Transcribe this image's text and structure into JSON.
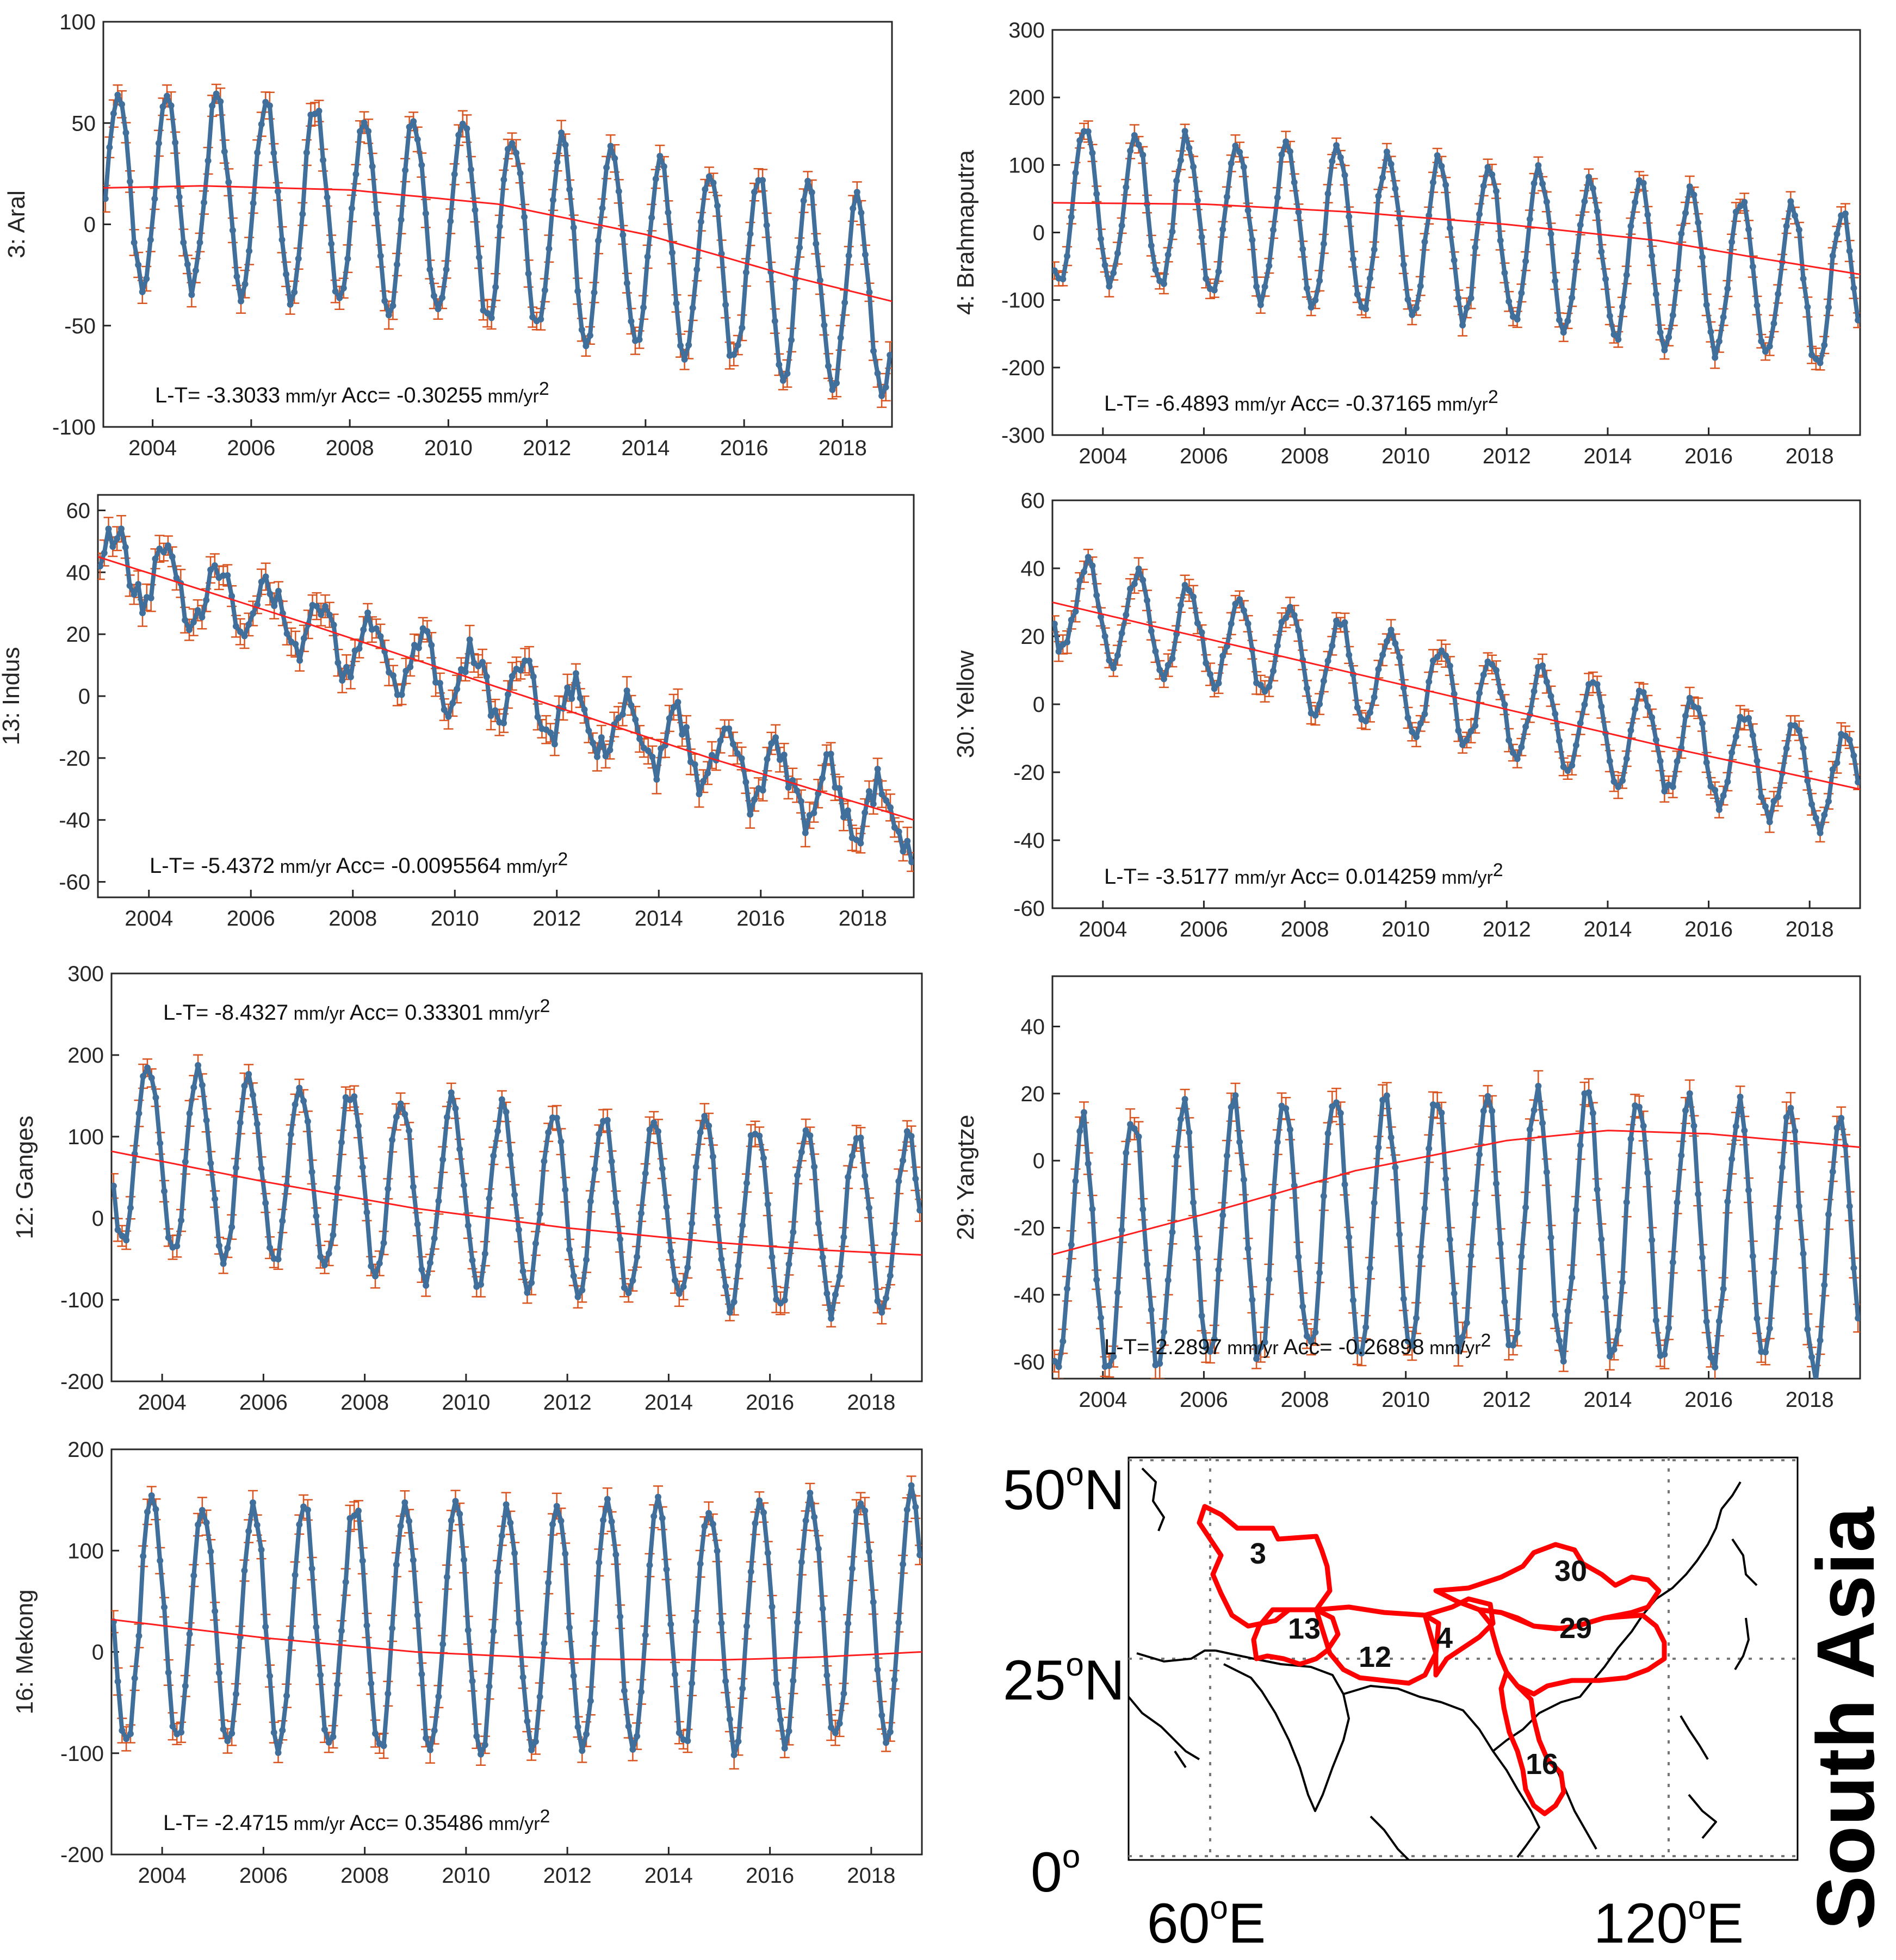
{
  "colors": {
    "series": "#3f6f9a",
    "error": "#d9541e",
    "trend": "#ff1f1f",
    "axis": "#262626",
    "basin": "#ff0000"
  },
  "x_ticks": [
    2004,
    2006,
    2008,
    2010,
    2012,
    2014,
    2016,
    2018
  ],
  "chart_data": [
    {
      "type": "line",
      "ylabel": "3: Aral",
      "xlim": [
        2003,
        2019
      ],
      "ylim": [
        -100,
        100
      ],
      "yticks": [
        -100,
        -50,
        0,
        50,
        100
      ],
      "annotation": {
        "lt_label": "L-T=",
        "lt_value": "-3.3033",
        "lt_unit": "mm/yr",
        "acc_label": "Acc=",
        "acc_value": "-0.30255",
        "acc_unit": "mm/yr",
        "acc_exp": "2"
      },
      "seasonal": {
        "amplitude": 47,
        "offset": 18,
        "slope": -1.2,
        "accel": -0.3,
        "peak": 0.3,
        "noise": 5,
        "err": 6,
        "seed": 3
      },
      "trend": [
        [
          2003,
          18
        ],
        [
          2005,
          19
        ],
        [
          2008,
          17
        ],
        [
          2011,
          10
        ],
        [
          2014,
          -5
        ],
        [
          2017,
          -26
        ],
        [
          2019,
          -38
        ]
      ]
    },
    {
      "type": "line",
      "ylabel": "4: Brahmaputra",
      "xlim": [
        2003,
        2019
      ],
      "ylim": [
        -300,
        300
      ],
      "yticks": [
        -300,
        -200,
        -100,
        0,
        100,
        200,
        300
      ],
      "annotation": {
        "lt_label": "L-T=",
        "lt_value": "-6.4893",
        "lt_unit": "mm/yr",
        "acc_label": "Acc=",
        "acc_value": "-0.37165",
        "acc_unit": "mm/yr",
        "acc_exp": "2"
      },
      "seasonal": {
        "amplitude": 115,
        "offset": 44,
        "slope": -5.5,
        "accel": -0.37,
        "peak": 0.65,
        "noise": 12,
        "err": 14,
        "seed": 4
      },
      "trend": [
        [
          2003,
          44
        ],
        [
          2006,
          42
        ],
        [
          2009,
          30
        ],
        [
          2012,
          12
        ],
        [
          2015,
          -12
        ],
        [
          2017,
          -38
        ],
        [
          2019,
          -62
        ]
      ]
    },
    {
      "type": "line",
      "ylabel": "13: Indus",
      "xlim": [
        2003,
        2019
      ],
      "ylim": [
        -65,
        65
      ],
      "yticks": [
        -60,
        -40,
        -20,
        0,
        20,
        40,
        60
      ],
      "annotation": {
        "lt_label": "L-T=",
        "lt_value": "-5.4372",
        "lt_unit": "mm/yr",
        "acc_label": "Acc=",
        "acc_value": "-0.0095564",
        "acc_unit": "mm/yr",
        "acc_exp": "2"
      },
      "seasonal": {
        "amplitude": 10,
        "offset": 45,
        "slope": -5.4,
        "accel": 0,
        "peak": 0.35,
        "noise": 5,
        "err": 4,
        "seed": 13
      },
      "trend": [
        [
          2003,
          45
        ],
        [
          2007,
          24
        ],
        [
          2011,
          2
        ],
        [
          2015,
          -20
        ],
        [
          2019,
          -40
        ]
      ]
    },
    {
      "type": "line",
      "ylabel": "30: Yellow",
      "xlim": [
        2003,
        2019
      ],
      "ylim": [
        -60,
        60
      ],
      "yticks": [
        -60,
        -40,
        -20,
        0,
        20,
        40,
        60
      ],
      "annotation": {
        "lt_label": "L-T=",
        "lt_value": "-3.5177",
        "lt_unit": "mm/yr",
        "acc_label": "Acc=",
        "acc_value": "0.014259",
        "acc_unit": "mm/yr",
        "acc_exp": "2"
      },
      "seasonal": {
        "amplitude": 14,
        "offset": 30,
        "slope": -3.5,
        "accel": 0.014,
        "peak": 0.7,
        "noise": 2.5,
        "err": 3,
        "seed": 30
      },
      "trend": [
        [
          2003,
          30
        ],
        [
          2007,
          16
        ],
        [
          2011,
          2
        ],
        [
          2015,
          -12
        ],
        [
          2019,
          -25
        ]
      ]
    },
    {
      "type": "line",
      "ylabel": "12: Ganges",
      "xlim": [
        2003,
        2019
      ],
      "ylim": [
        -200,
        300
      ],
      "yticks": [
        -200,
        -100,
        0,
        100,
        200,
        300
      ],
      "annotation": {
        "lt_label": "L-T=",
        "lt_value": "-8.4327",
        "lt_unit": "mm/yr",
        "acc_label": "Acc=",
        "acc_value": "0.33301",
        "acc_unit": "mm/yr",
        "acc_exp": "2"
      },
      "seasonal": {
        "amplitude": 110,
        "offset": 82,
        "slope": -8.4,
        "accel": 0.33,
        "peak": 0.72,
        "noise": 12,
        "err": 14,
        "seed": 12
      },
      "trend": [
        [
          2003,
          82
        ],
        [
          2006,
          45
        ],
        [
          2009,
          12
        ],
        [
          2012,
          -12
        ],
        [
          2015,
          -30
        ],
        [
          2017,
          -39
        ],
        [
          2019,
          -45
        ]
      ]
    },
    {
      "type": "line",
      "ylabel": "29: Yangtze",
      "xlim": [
        2003,
        2019
      ],
      "ylim": [
        -65,
        55
      ],
      "yticks": [
        -60,
        -40,
        -20,
        0,
        20,
        40
      ],
      "annotation": {
        "lt_label": "L-T=",
        "lt_value": "2.2897",
        "lt_unit": "mm/yr",
        "acc_label": "Acc=",
        "acc_value": "-0.26898",
        "acc_unit": "mm/yr",
        "acc_exp": "2"
      },
      "seasonal": {
        "amplitude": 38,
        "offset": -28,
        "slope": 2.3,
        "accel": -0.27,
        "peak": 0.6,
        "noise": 4,
        "err": 4,
        "seed": 29
      },
      "trend": [
        [
          2003,
          -28
        ],
        [
          2006,
          -16
        ],
        [
          2009,
          -3
        ],
        [
          2012,
          6
        ],
        [
          2014,
          9
        ],
        [
          2016,
          8
        ],
        [
          2019,
          4
        ]
      ]
    },
    {
      "type": "line",
      "ylabel": "16: Mekong",
      "xlim": [
        2003,
        2019
      ],
      "ylim": [
        -200,
        200
      ],
      "yticks": [
        -200,
        -100,
        0,
        100,
        200
      ],
      "annotation": {
        "lt_label": "L-T=",
        "lt_value": "-2.4715",
        "lt_unit": "mm/yr",
        "acc_label": "Acc=",
        "acc_value": "0.35486",
        "acc_unit": "mm/yr",
        "acc_exp": "2"
      },
      "seasonal": {
        "amplitude": 120,
        "offset": 32,
        "slope": -2.5,
        "accel": 0.35,
        "peak": 0.8,
        "noise": 10,
        "err": 12,
        "seed": 16
      },
      "trend": [
        [
          2003,
          32
        ],
        [
          2006,
          14
        ],
        [
          2009,
          0
        ],
        [
          2012,
          -7
        ],
        [
          2015,
          -8
        ],
        [
          2017,
          -5
        ],
        [
          2019,
          0
        ]
      ]
    }
  ],
  "map": {
    "title": "South Asia",
    "lat_labels": [
      {
        "deg": "50",
        "sup": "o",
        "hemi": "N"
      },
      {
        "deg": "25",
        "sup": "o",
        "hemi": "N"
      },
      {
        "deg": "0",
        "sup": "o",
        "hemi": ""
      }
    ],
    "lon_labels": [
      {
        "deg": "60",
        "sup": "o",
        "hemi": "E"
      },
      {
        "deg": "120",
        "sup": "o",
        "hemi": "E"
      }
    ],
    "basins": [
      {
        "label": "3"
      },
      {
        "label": "13"
      },
      {
        "label": "12"
      },
      {
        "label": "4"
      },
      {
        "label": "30"
      },
      {
        "label": "29"
      },
      {
        "label": "16"
      }
    ]
  }
}
